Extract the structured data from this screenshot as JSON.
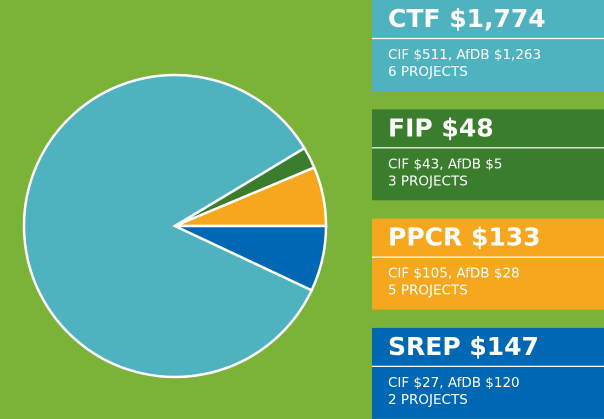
{
  "chart_data": {
    "type": "pie",
    "categories": [
      "CTF",
      "FIP",
      "PPCR",
      "SREP"
    ],
    "values": [
      1774,
      48,
      133,
      147
    ],
    "value_labels": [
      "$1,774",
      "$48",
      "$133",
      "$147"
    ],
    "colors": [
      "#4fb3bf",
      "#3a7d2c",
      "#f6a71d",
      "#0068b3"
    ],
    "details": [
      [
        "CIF $511, AfDB $1,263",
        "6 PROJECTS"
      ],
      [
        "CIF $43, AfDB $5",
        "3 PROJECTS"
      ],
      [
        "CIF $105, AfDB $28",
        "5 PROJECTS"
      ],
      [
        "CIF $27, AfDB $120",
        "2 PROJECTS"
      ]
    ]
  }
}
